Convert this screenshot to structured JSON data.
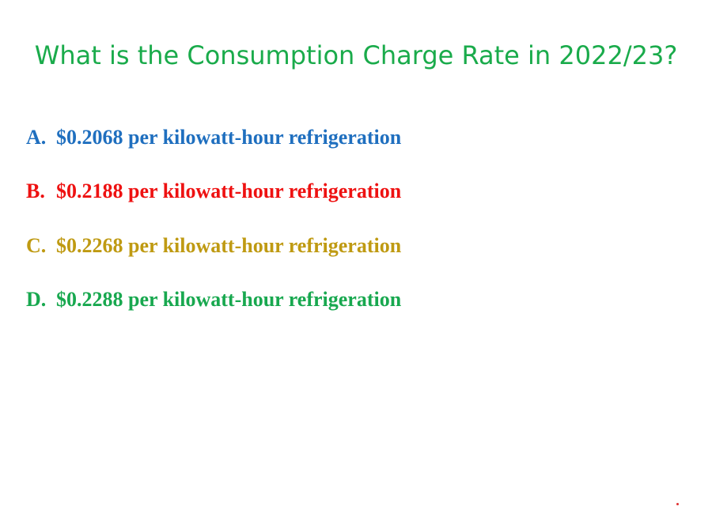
{
  "title": {
    "text": "What is the Consumption Charge Rate in 2022/23?",
    "color": "#1aab4b"
  },
  "options": [
    {
      "letter": "A.",
      "text": "$0.2068 per kilowatt-hour refrigeration",
      "color": "#1f6fbf"
    },
    {
      "letter": "B.",
      "text": "$0.2188 per kilowatt-hour refrigeration",
      "color": "#ee1111"
    },
    {
      "letter": "C.",
      "text": "$0.2268 per kilowatt-hour refrigeration",
      "color": "#bf9a12"
    },
    {
      "letter": "D.",
      "text": "$0.2288 per kilowatt-hour refrigeration",
      "color": "#18a84f"
    }
  ],
  "dot_color": "#e03030"
}
